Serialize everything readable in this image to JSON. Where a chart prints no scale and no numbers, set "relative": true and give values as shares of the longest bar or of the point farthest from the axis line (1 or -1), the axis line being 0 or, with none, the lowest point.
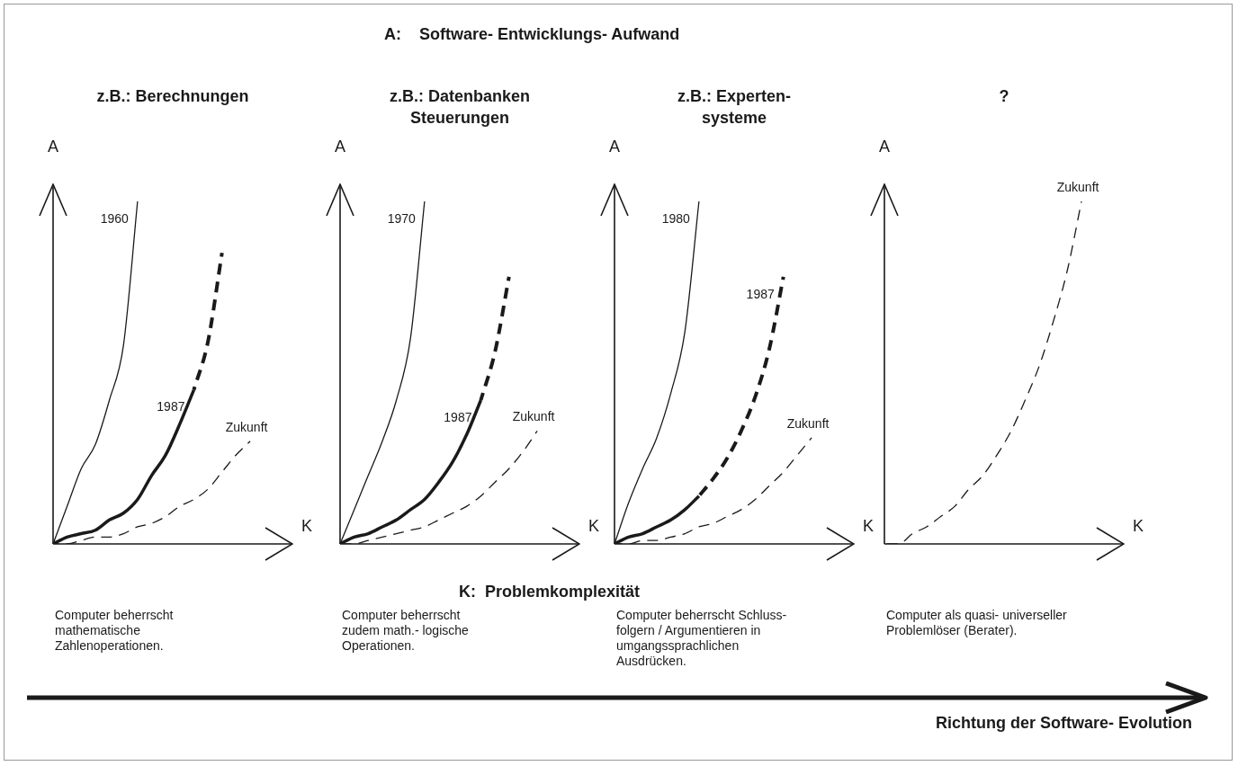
{
  "chart_data": [
    {
      "type": "line",
      "relative": true,
      "title": "z.B.: Berechnungen",
      "xlabel": "K",
      "ylabel": "A",
      "categories": [
        null,
        null,
        null,
        null,
        null,
        null,
        null,
        null,
        null,
        null,
        null,
        null,
        null,
        null,
        null,
        null,
        null,
        null
      ],
      "legend": false,
      "marker": "none",
      "annotations": [
        "A:    Software- Entwicklungs- Aufwand",
        "K:  Problemkomplexität",
        "Richtung der Software- Evolution",
        "Computer beherrscht\nmathematische\nZahlenoperationen."
      ],
      "series": [
        {
          "name": "1960",
          "color": "#1a1a1a",
          "line_style": "solid",
          "values": [
            0,
            0.11,
            0.22,
            0.29,
            0.42,
            0.58,
            1.0,
            null,
            null,
            null,
            null,
            null,
            null,
            null,
            null,
            null,
            null,
            null
          ]
        },
        {
          "name": "1987",
          "color": "#1a1a1a",
          "line_style": "solid",
          "values": [
            0,
            0.02,
            0.03,
            0.04,
            0.07,
            0.09,
            0.13,
            0.2,
            0.26,
            0.35,
            0.45,
            null,
            null,
            null,
            null,
            null,
            null,
            null
          ]
        },
        {
          "color": "#1a1a1a",
          "line_style": "dashed",
          "values": [
            null,
            null,
            null,
            null,
            null,
            null,
            null,
            null,
            null,
            null,
            0.45,
            0.59,
            0.85,
            null,
            null,
            null,
            null,
            null
          ]
        },
        {
          "name": "Zukunft",
          "color": "#1a1a1a",
          "line_style": "dashed",
          "values": [
            0,
            0,
            0.01,
            0.02,
            0.02,
            0.03,
            0.05,
            0.06,
            0.08,
            0.11,
            0.13,
            0.16,
            0.21,
            0.26,
            0.3,
            null,
            null,
            null
          ]
        }
      ]
    },
    {
      "type": "line",
      "relative": true,
      "title": "z.B.: Datenbanken\nSteuerungen",
      "xlabel": "K",
      "ylabel": "A",
      "categories": [
        null,
        null,
        null,
        null,
        null,
        null,
        null,
        null,
        null,
        null,
        null,
        null,
        null,
        null,
        null,
        null,
        null,
        null
      ],
      "legend": false,
      "marker": "none",
      "annotations": [
        "Computer beherrscht\nzudem math.- logische\nOperationen."
      ],
      "series": [
        {
          "name": "1970",
          "color": "#1a1a1a",
          "line_style": "solid",
          "values": [
            0,
            0.1,
            0.2,
            0.3,
            0.42,
            0.6,
            1.0,
            null,
            null,
            null,
            null,
            null,
            null,
            null,
            null,
            null,
            null,
            null
          ]
        },
        {
          "name": "1987",
          "color": "#1a1a1a",
          "line_style": "solid",
          "values": [
            0,
            0.02,
            0.03,
            0.05,
            0.07,
            0.1,
            0.13,
            0.18,
            0.24,
            0.32,
            0.42,
            null,
            null,
            null,
            null,
            null,
            null,
            null
          ]
        },
        {
          "color": "#1a1a1a",
          "line_style": "dashed",
          "values": [
            null,
            null,
            null,
            null,
            null,
            null,
            null,
            null,
            null,
            null,
            0.42,
            0.56,
            0.78,
            null,
            null,
            null,
            null,
            null
          ]
        },
        {
          "name": "Zukunft",
          "color": "#1a1a1a",
          "line_style": "dashed",
          "values": [
            0,
            0,
            0.01,
            0.02,
            0.03,
            0.04,
            0.05,
            0.07,
            0.09,
            0.11,
            0.14,
            0.18,
            0.22,
            0.27,
            0.33,
            null,
            null,
            null
          ]
        }
      ]
    },
    {
      "type": "line",
      "relative": true,
      "title": "z.B.: Experten-\nsysteme",
      "xlabel": "K",
      "ylabel": "A",
      "categories": [
        null,
        null,
        null,
        null,
        null,
        null,
        null,
        null,
        null,
        null,
        null,
        null,
        null,
        null,
        null,
        null,
        null,
        null
      ],
      "legend": false,
      "marker": "none",
      "annotations": [
        "Computer beherrscht Schluss-\nfolgern / Argumentieren in\numgangssprachlichen\nAusdrücken."
      ],
      "series": [
        {
          "name": "1980",
          "color": "#1a1a1a",
          "line_style": "solid",
          "values": [
            0,
            0.12,
            0.22,
            0.31,
            0.44,
            0.62,
            1.0,
            null,
            null,
            null,
            null,
            null,
            null,
            null,
            null,
            null,
            null,
            null
          ]
        },
        {
          "color": "#1a1a1a",
          "line_style": "solid",
          "values": [
            0,
            0.02,
            0.03,
            0.05,
            0.07,
            0.1,
            0.14,
            null,
            null,
            null,
            null,
            null,
            null,
            null,
            null,
            null,
            null,
            null
          ]
        },
        {
          "name": "1987",
          "color": "#1a1a1a",
          "line_style": "dashed",
          "values": [
            null,
            null,
            null,
            null,
            null,
            null,
            0.14,
            0.19,
            0.25,
            0.33,
            0.43,
            0.57,
            0.78,
            null,
            null,
            null,
            null,
            null
          ]
        },
        {
          "name": "Zukunft",
          "color": "#1a1a1a",
          "line_style": "dashed",
          "values": [
            0,
            0,
            0.01,
            0.01,
            0.02,
            0.03,
            0.05,
            0.06,
            0.08,
            0.1,
            0.13,
            0.17,
            0.21,
            0.26,
            0.31,
            null,
            null,
            null
          ]
        }
      ]
    },
    {
      "type": "line",
      "relative": true,
      "title": "?",
      "xlabel": "K",
      "ylabel": "A",
      "categories": [
        null,
        null,
        null,
        null,
        null,
        null,
        null,
        null,
        null,
        null,
        null,
        null,
        null,
        null,
        null,
        null,
        null,
        null
      ],
      "legend": false,
      "marker": "none",
      "annotations": [
        "Computer als quasi- universeller\nProblemlöser (Berater)."
      ],
      "series": [
        {
          "name": "Zukunft",
          "color": "#1a1a1a",
          "line_style": "dashed",
          "values": [
            0,
            0,
            0.03,
            0.05,
            0.08,
            0.11,
            0.16,
            0.2,
            0.26,
            0.33,
            0.42,
            0.52,
            0.65,
            0.8,
            1.0,
            null,
            null,
            null
          ]
        }
      ]
    }
  ]
}
